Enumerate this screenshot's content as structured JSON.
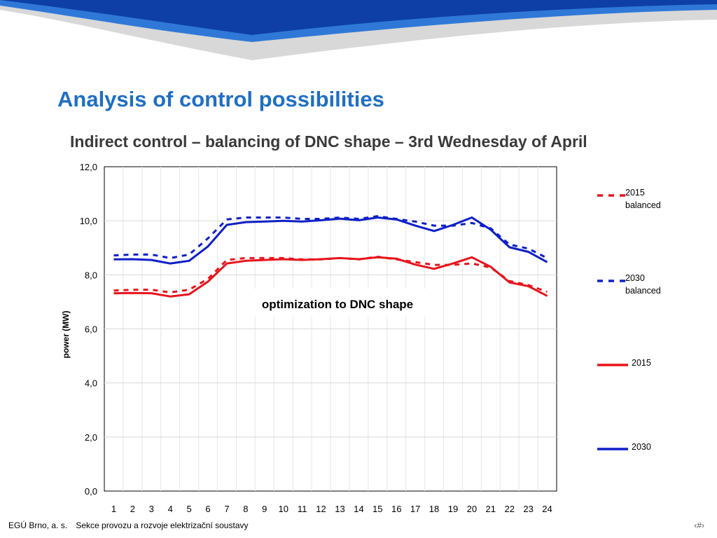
{
  "slide": {
    "title": "Analysis of control possibilities",
    "page_marker": "‹#›"
  },
  "footer": {
    "org": "EGÚ Brno, a. s.",
    "department": "Sekce provozu a rozvoje elektrizační soustavy"
  },
  "colors": {
    "title": "#1f6fc4",
    "banner_dark": "#0d3fa6",
    "banner_light": "#2f78d8",
    "series_red": "#e8141c",
    "series_blue": "#0f1fc8"
  },
  "chart_data": {
    "type": "line",
    "title": "Indirect control – balancing of DNC shape – 3rd Wednesday of April",
    "xlabel": "",
    "ylabel": "power (MW)",
    "annotation": "optimization to DNC shape",
    "x": [
      1,
      2,
      3,
      4,
      5,
      6,
      7,
      8,
      9,
      10,
      11,
      12,
      13,
      14,
      15,
      16,
      17,
      18,
      19,
      20,
      21,
      22,
      23,
      24
    ],
    "ylim": [
      0,
      12
    ],
    "yticks": [
      "0,0",
      "2,0",
      "4,0",
      "6,0",
      "8,0",
      "10,0",
      "12,0"
    ],
    "grid": true,
    "legend_position": "right",
    "series": [
      {
        "name": "2015 balanced",
        "color": "#e8141c",
        "style": "dashed",
        "values": [
          7.42,
          7.45,
          7.45,
          7.35,
          7.45,
          7.85,
          8.55,
          8.62,
          8.62,
          8.62,
          8.57,
          8.57,
          8.62,
          8.57,
          8.67,
          8.57,
          8.47,
          8.37,
          8.37,
          8.42,
          8.27,
          7.77,
          7.62,
          7.37
        ]
      },
      {
        "name": "2030 balanced",
        "color": "#0f1fc8",
        "style": "dashed",
        "values": [
          8.72,
          8.75,
          8.75,
          8.62,
          8.75,
          9.35,
          10.05,
          10.12,
          10.12,
          10.12,
          10.07,
          10.07,
          10.12,
          10.07,
          10.17,
          10.07,
          9.97,
          9.82,
          9.82,
          9.92,
          9.72,
          9.12,
          8.97,
          8.62
        ]
      },
      {
        "name": "2015",
        "color": "#e8141c",
        "style": "solid",
        "values": [
          7.32,
          7.33,
          7.32,
          7.2,
          7.28,
          7.75,
          8.42,
          8.52,
          8.55,
          8.58,
          8.55,
          8.58,
          8.62,
          8.58,
          8.65,
          8.6,
          8.38,
          8.22,
          8.42,
          8.65,
          8.3,
          7.72,
          7.58,
          7.22
        ]
      },
      {
        "name": "2030",
        "color": "#0f1fc8",
        "style": "solid",
        "values": [
          8.57,
          8.58,
          8.55,
          8.42,
          8.52,
          9.05,
          9.85,
          9.95,
          9.97,
          10.0,
          9.97,
          10.02,
          10.08,
          10.02,
          10.12,
          10.05,
          9.82,
          9.62,
          9.85,
          10.12,
          9.67,
          9.02,
          8.85,
          8.47
        ]
      }
    ]
  }
}
